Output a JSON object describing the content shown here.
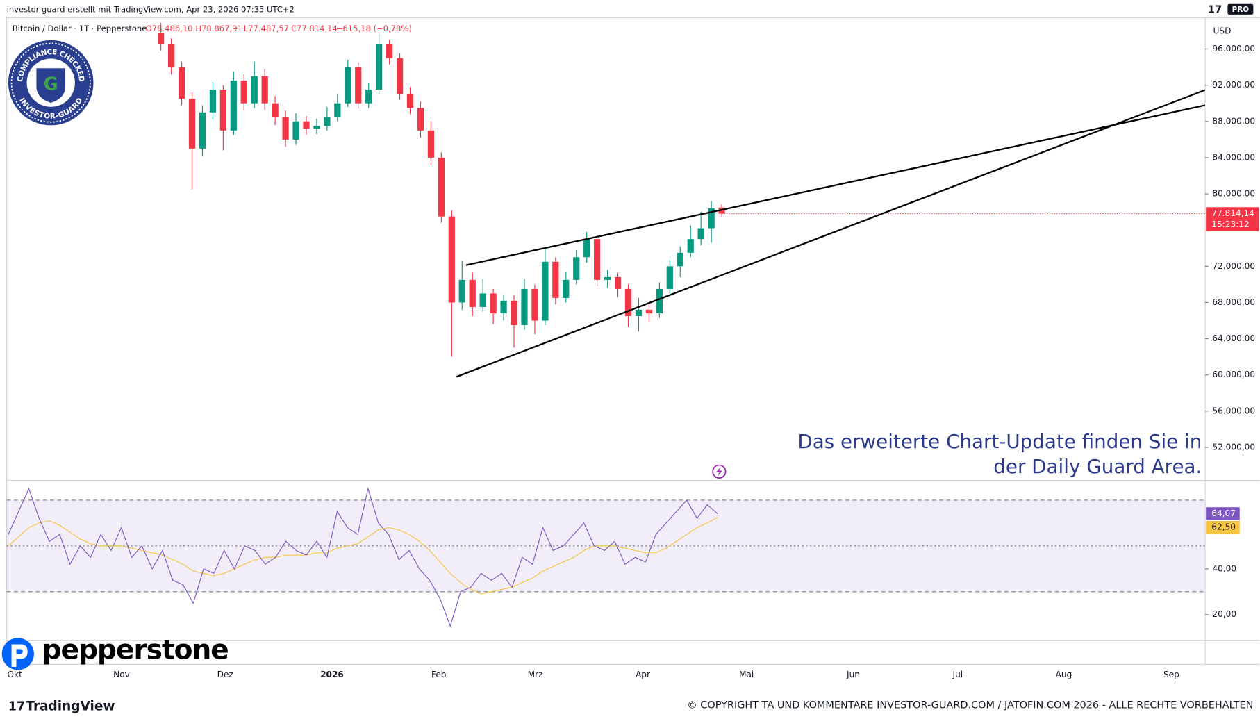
{
  "header": {
    "credit": "investor-guard erstellt mit TradingView.com, Apr 23, 2026 07:35 UTC+2",
    "pro_badge": "PRO"
  },
  "chart_data": {
    "type": "candlestick",
    "legend": {
      "symbol": "Bitcoin / Dollar · 1T · Pepperstone",
      "open": "O78.486,10",
      "high": "H78.867,91",
      "low": "L77.487,57",
      "close": "C77.814,14",
      "change": "−615,18 (−0,78%)"
    },
    "currency": "USD",
    "up_color": "#089981",
    "down_color": "#f23645",
    "candles": [
      [
        97800,
        98900,
        95800,
        96500
      ],
      [
        96500,
        97200,
        93200,
        94000
      ],
      [
        94000,
        94600,
        89800,
        90500
      ],
      [
        90500,
        91200,
        80500,
        85000
      ],
      [
        85000,
        89800,
        84200,
        89000
      ],
      [
        89000,
        92300,
        88200,
        91500
      ],
      [
        91500,
        92000,
        84800,
        87000
      ],
      [
        87000,
        93500,
        86500,
        92500
      ],
      [
        92500,
        93200,
        89200,
        90000
      ],
      [
        90000,
        94600,
        89500,
        93000
      ],
      [
        93000,
        93800,
        89300,
        90000
      ],
      [
        90000,
        90800,
        87600,
        88500
      ],
      [
        88500,
        89200,
        85200,
        86000
      ],
      [
        86000,
        88900,
        85400,
        88000
      ],
      [
        88000,
        88600,
        86500,
        87200
      ],
      [
        87200,
        88300,
        86600,
        87500
      ],
      [
        87500,
        89600,
        87000,
        88500
      ],
      [
        88500,
        91000,
        88000,
        90000
      ],
      [
        90000,
        94800,
        89600,
        94000
      ],
      [
        94000,
        94500,
        89400,
        90000
      ],
      [
        90000,
        92200,
        89500,
        91500
      ],
      [
        91500,
        97700,
        91000,
        96500
      ],
      [
        96500,
        97000,
        94300,
        95000
      ],
      [
        95000,
        95500,
        90400,
        91000
      ],
      [
        91000,
        91800,
        88800,
        89500
      ],
      [
        89500,
        90200,
        86200,
        87000
      ],
      [
        87000,
        88000,
        83200,
        84000
      ],
      [
        84000,
        84600,
        76800,
        77500
      ],
      [
        77500,
        78200,
        62000,
        68000
      ],
      [
        68000,
        72600,
        67200,
        70500
      ],
      [
        70500,
        71300,
        66500,
        67500
      ],
      [
        67500,
        70600,
        67000,
        69000
      ],
      [
        69000,
        69500,
        65600,
        66800
      ],
      [
        66800,
        68900,
        66000,
        68200
      ],
      [
        68200,
        68800,
        63000,
        65500
      ],
      [
        65500,
        70600,
        65000,
        69500
      ],
      [
        69500,
        70000,
        64500,
        66000
      ],
      [
        66000,
        74000,
        65500,
        72500
      ],
      [
        72500,
        73000,
        67800,
        68500
      ],
      [
        68500,
        71400,
        68000,
        70500
      ],
      [
        70500,
        73800,
        70000,
        73000
      ],
      [
        73000,
        75800,
        72400,
        75000
      ],
      [
        75000,
        75400,
        69800,
        70500
      ],
      [
        70500,
        71600,
        69600,
        70800
      ],
      [
        70800,
        71300,
        68600,
        69500
      ],
      [
        69500,
        70000,
        65300,
        66500
      ],
      [
        66500,
        68500,
        64800,
        67200
      ],
      [
        67200,
        67800,
        65800,
        66800
      ],
      [
        66800,
        70200,
        66300,
        69500
      ],
      [
        69500,
        72700,
        69000,
        72000
      ],
      [
        72000,
        74200,
        70800,
        73500
      ],
      [
        73500,
        76500,
        73000,
        75000
      ],
      [
        75000,
        78000,
        74300,
        76200
      ],
      [
        76200,
        79200,
        74600,
        78400
      ],
      [
        78486.1,
        78867.91,
        77487.57,
        77814.14
      ]
    ],
    "last_price_label": "77.814,14",
    "countdown": "15:23:12",
    "ylim": [
      48350,
      98750
    ],
    "yticks": [
      {
        "value": 96000,
        "label": "96.000,00"
      },
      {
        "value": 92000,
        "label": "92.000,00"
      },
      {
        "value": 88000,
        "label": "88.000,00"
      },
      {
        "value": 84000,
        "label": "84.000,00"
      },
      {
        "value": 80000,
        "label": "80.000,00"
      },
      {
        "value": 72000,
        "label": "72.000,00"
      },
      {
        "value": 68000,
        "label": "68.000,00"
      },
      {
        "value": 64000,
        "label": "64.000,00"
      },
      {
        "value": 60000,
        "label": "60.000,00"
      },
      {
        "value": 56000,
        "label": "56.000,00"
      },
      {
        "value": 52000,
        "label": "52.000,00"
      }
    ],
    "annotation": [
      "Das erweiterte Chart-Update finden Sie in",
      "der Daily Guard Area."
    ],
    "rsi": {
      "color": "#7e57c2",
      "ma_color": "#f5c542",
      "values": [
        55,
        65,
        75,
        62,
        52,
        55,
        42,
        50,
        45,
        55,
        48,
        58,
        45,
        50,
        40,
        48,
        35,
        33,
        25,
        40,
        38,
        48,
        40,
        50,
        48,
        42,
        45,
        52,
        48,
        46,
        52,
        45,
        65,
        58,
        55,
        75,
        60,
        55,
        44,
        48,
        40,
        35,
        27,
        15,
        30,
        32,
        38,
        35,
        38,
        32,
        45,
        42,
        58,
        48,
        50,
        55,
        60,
        50,
        48,
        52,
        42,
        45,
        43,
        55,
        60,
        65,
        70,
        62,
        68,
        64.07
      ],
      "ma": [
        50,
        54,
        58,
        60,
        61,
        59,
        56,
        53,
        51,
        50,
        50,
        50,
        49,
        48,
        47,
        46,
        44,
        42,
        39,
        38,
        37,
        38,
        40,
        42,
        44,
        45,
        45,
        46,
        46,
        46,
        47,
        47,
        49,
        50,
        51,
        54,
        57,
        58,
        57,
        55,
        52,
        48,
        43,
        38,
        34,
        31,
        29,
        30,
        31,
        32,
        34,
        36,
        39,
        41,
        43,
        45,
        48,
        50,
        50,
        50,
        49,
        48,
        47,
        47,
        49,
        52,
        55,
        58,
        60,
        62.5
      ],
      "value_label": "64,07",
      "ma_label": "62,50",
      "bands": [
        30,
        50,
        70
      ],
      "ylim": [
        8.8,
        78.6
      ],
      "yticks": [
        {
          "value": 40,
          "label": "40,00"
        },
        {
          "value": 20,
          "label": "20,00"
        }
      ]
    },
    "months": [
      "Okt",
      "Nov",
      "Dez",
      "2026",
      "Feb",
      "Mrz",
      "Apr",
      "Mai",
      "Jun",
      "Jul",
      "Aug",
      "Sep"
    ]
  },
  "badge": {
    "top": "COMPLIANCE CHECKED",
    "bottom": "INVESTOR-GUARD",
    "letter": "G"
  },
  "broker_logo": "pepperstone",
  "footer": {
    "brand": "TradingView",
    "copyright": "© COPYRIGHT TA UND KOMMENTARE INVESTOR-GUARD.COM / JATOFIN.COM 2026 - ALLE RECHTE VORBEHALTEN"
  }
}
